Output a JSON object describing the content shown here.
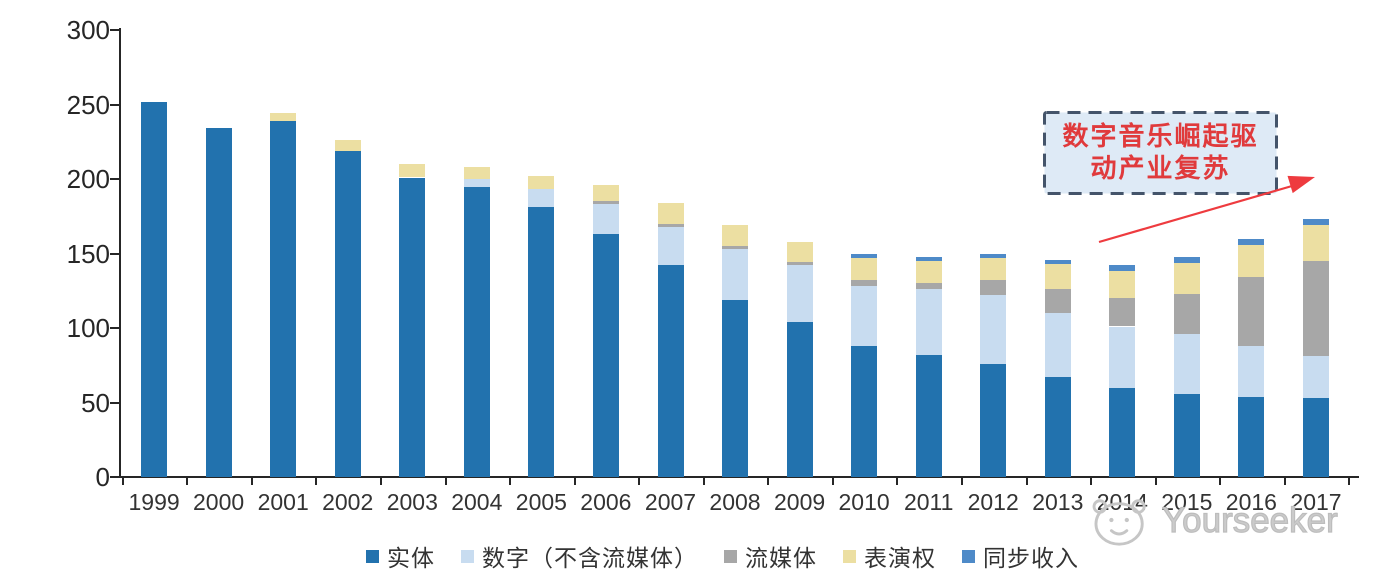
{
  "chart_data": {
    "type": "bar",
    "stacked": true,
    "categories": [
      "1999",
      "2000",
      "2001",
      "2002",
      "2003",
      "2004",
      "2005",
      "2006",
      "2007",
      "2008",
      "2009",
      "2010",
      "2011",
      "2012",
      "2013",
      "2014",
      "2015",
      "2016",
      "2017"
    ],
    "series": [
      {
        "key": "physical",
        "label": "实体",
        "color": "#2272AE",
        "values": [
          252,
          234,
          239,
          219,
          201,
          195,
          181,
          163,
          142,
          119,
          104,
          88,
          82,
          76,
          67,
          60,
          56,
          54,
          53
        ]
      },
      {
        "key": "digital-excl-streaming",
        "label": "数字（不含流媒体）",
        "color": "#C8DCF0",
        "values": [
          0,
          0,
          0,
          0,
          0,
          5,
          12,
          20,
          26,
          34,
          38,
          40,
          44,
          46,
          43,
          41,
          40,
          34,
          28
        ]
      },
      {
        "key": "streaming",
        "label": "流媒体",
        "color": "#A7A7A7",
        "values": [
          0,
          0,
          0,
          0,
          0,
          0,
          0,
          2,
          2,
          2,
          2,
          4,
          4,
          10,
          16,
          19,
          27,
          46,
          64
        ]
      },
      {
        "key": "performance-rights",
        "label": "表演权",
        "color": "#ECDFA2",
        "values": [
          0,
          0,
          5,
          7,
          9,
          8,
          9,
          11,
          14,
          14,
          14,
          15,
          15,
          15,
          17,
          18,
          21,
          22,
          24
        ]
      },
      {
        "key": "sync-revenue",
        "label": "同步收入",
        "color": "#4E8AC8",
        "values": [
          0,
          0,
          0,
          0,
          0,
          0,
          0,
          0,
          0,
          0,
          0,
          3,
          3,
          3,
          3,
          4,
          4,
          4,
          4
        ]
      }
    ],
    "ylim": [
      0,
      300
    ],
    "y_ticks": [
      0,
      50,
      100,
      150,
      200,
      250,
      300
    ],
    "grid": false,
    "legend_position": "bottom",
    "axis_color": "#262626"
  },
  "annotation": {
    "text_line1": "数字音乐崛起驱",
    "text_line2": "动产业复苏",
    "text_color": "#E03A3C",
    "box_fill": "#DEEAF6",
    "box_border_color": "#44546A",
    "arrow_color": "#EE3B3F"
  },
  "watermark": {
    "text": "Yourseeker",
    "icon": "mascot-face-icon",
    "color": "#C6C6C6"
  }
}
